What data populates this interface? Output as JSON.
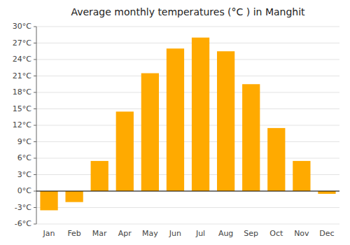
{
  "chart_data": {
    "type": "bar",
    "title": "Average monthly temperatures (°C ) in Manghit",
    "categories": [
      "Jan",
      "Feb",
      "Mar",
      "Apr",
      "May",
      "Jun",
      "Jul",
      "Aug",
      "Sep",
      "Oct",
      "Nov",
      "Dec"
    ],
    "values": [
      -3.5,
      -2.0,
      5.5,
      14.5,
      21.5,
      26.0,
      28.0,
      25.5,
      19.5,
      11.5,
      5.5,
      -0.5
    ],
    "color": "#FFAA00",
    "ylim": [
      -6,
      30
    ],
    "yticks": [
      {
        "value": -6,
        "label": "-6°C"
      },
      {
        "value": -3,
        "label": "-3°C"
      },
      {
        "value": 0,
        "label": "0°C"
      },
      {
        "value": 3,
        "label": "3°C"
      },
      {
        "value": 6,
        "label": "6°C"
      },
      {
        "value": 9,
        "label": "9°C"
      },
      {
        "value": 12,
        "label": "12°C"
      },
      {
        "value": 15,
        "label": "15°C"
      },
      {
        "value": 18,
        "label": "18°C"
      },
      {
        "value": 21,
        "label": "21°C"
      },
      {
        "value": 24,
        "label": "24°C"
      },
      {
        "value": 27,
        "label": "27°C"
      },
      {
        "value": 30,
        "label": "30°C"
      }
    ],
    "grid": true
  }
}
